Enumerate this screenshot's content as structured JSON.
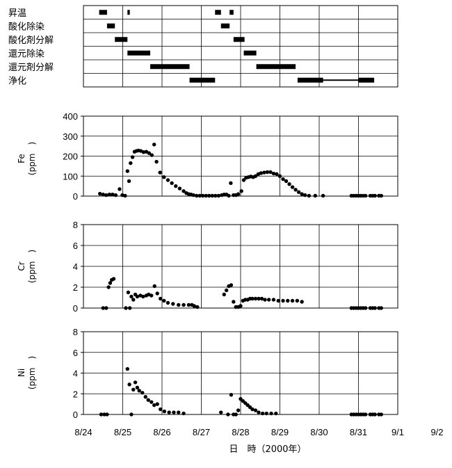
{
  "chart_data": [
    {
      "type": "gantt",
      "rows": [
        "昇温",
        "酸化除染",
        "酸化剤分解",
        "還元除染",
        "還元剤分解",
        "浄化"
      ],
      "bars": [
        {
          "row": 0,
          "start": 0.4,
          "end": 0.6
        },
        {
          "row": 0,
          "start": 1.12,
          "end": 1.18
        },
        {
          "row": 0,
          "start": 3.35,
          "end": 3.5
        },
        {
          "row": 0,
          "start": 3.72,
          "end": 3.82
        },
        {
          "row": 1,
          "start": 0.6,
          "end": 0.8
        },
        {
          "row": 1,
          "start": 3.5,
          "end": 3.72
        },
        {
          "row": 2,
          "start": 0.8,
          "end": 1.12
        },
        {
          "row": 2,
          "start": 3.82,
          "end": 4.1
        },
        {
          "row": 3,
          "start": 1.12,
          "end": 1.7
        },
        {
          "row": 3,
          "start": 4.08,
          "end": 4.4
        },
        {
          "row": 4,
          "start": 1.7,
          "end": 2.7
        },
        {
          "row": 4,
          "start": 4.4,
          "end": 5.4
        },
        {
          "row": 5,
          "start": 2.7,
          "end": 3.35
        },
        {
          "row": 5,
          "start": 5.45,
          "end": 6.1
        },
        {
          "row": 5,
          "start": 7.0,
          "end": 7.4
        }
      ],
      "lines": [
        {
          "row": 5,
          "start": 6.1,
          "end": 7.0
        }
      ]
    },
    {
      "type": "scatter",
      "ylabel": "Fe (ppm)",
      "ylim": [
        0,
        400
      ],
      "yticks": [
        0,
        100,
        200,
        300,
        400
      ],
      "points": [
        [
          0.42,
          12
        ],
        [
          0.5,
          8
        ],
        [
          0.58,
          5
        ],
        [
          0.66,
          8
        ],
        [
          0.74,
          8
        ],
        [
          0.82,
          5
        ],
        [
          0.92,
          35
        ],
        [
          0.99,
          5
        ],
        [
          1.06,
          2
        ],
        [
          1.12,
          125
        ],
        [
          1.16,
          75
        ],
        [
          1.2,
          165
        ],
        [
          1.25,
          195
        ],
        [
          1.3,
          222
        ],
        [
          1.35,
          226
        ],
        [
          1.4,
          228
        ],
        [
          1.46,
          226
        ],
        [
          1.53,
          220
        ],
        [
          1.6,
          222
        ],
        [
          1.67,
          215
        ],
        [
          1.74,
          205
        ],
        [
          1.8,
          258
        ],
        [
          1.86,
          172
        ],
        [
          1.95,
          118
        ],
        [
          2.05,
          95
        ],
        [
          2.15,
          80
        ],
        [
          2.25,
          65
        ],
        [
          2.35,
          50
        ],
        [
          2.45,
          38
        ],
        [
          2.55,
          25
        ],
        [
          2.62,
          15
        ],
        [
          2.68,
          10
        ],
        [
          2.74,
          8
        ],
        [
          2.8,
          5
        ],
        [
          2.88,
          2
        ],
        [
          2.96,
          2
        ],
        [
          3.04,
          2
        ],
        [
          3.12,
          2
        ],
        [
          3.2,
          2
        ],
        [
          3.28,
          2
        ],
        [
          3.36,
          2
        ],
        [
          3.44,
          2
        ],
        [
          3.52,
          5
        ],
        [
          3.58,
          8
        ],
        [
          3.64,
          8
        ],
        [
          3.7,
          2
        ],
        [
          3.75,
          65
        ],
        [
          3.82,
          5
        ],
        [
          3.88,
          5
        ],
        [
          3.94,
          10
        ],
        [
          4.02,
          25
        ],
        [
          4.08,
          80
        ],
        [
          4.14,
          92
        ],
        [
          4.2,
          95
        ],
        [
          4.26,
          98
        ],
        [
          4.32,
          95
        ],
        [
          4.38,
          100
        ],
        [
          4.45,
          110
        ],
        [
          4.52,
          115
        ],
        [
          4.6,
          118
        ],
        [
          4.68,
          120
        ],
        [
          4.76,
          120
        ],
        [
          4.84,
          113
        ],
        [
          4.92,
          110
        ],
        [
          5.0,
          100
        ],
        [
          5.08,
          85
        ],
        [
          5.16,
          75
        ],
        [
          5.24,
          60
        ],
        [
          5.32,
          45
        ],
        [
          5.4,
          32
        ],
        [
          5.48,
          20
        ],
        [
          5.56,
          10
        ],
        [
          5.64,
          5
        ],
        [
          5.74,
          2
        ],
        [
          5.9,
          2
        ],
        [
          6.1,
          2
        ],
        [
          6.82,
          2
        ],
        [
          6.88,
          2
        ],
        [
          6.94,
          2
        ],
        [
          7.0,
          2
        ],
        [
          7.06,
          2
        ],
        [
          7.12,
          2
        ],
        [
          7.18,
          2
        ],
        [
          7.3,
          2
        ],
        [
          7.36,
          2
        ],
        [
          7.42,
          2
        ],
        [
          7.52,
          2
        ],
        [
          7.58,
          2
        ]
      ]
    },
    {
      "type": "scatter",
      "ylabel": "Cr (ppm)",
      "ylim": [
        0,
        8
      ],
      "yticks": [
        0,
        2,
        4,
        6,
        8
      ],
      "points": [
        [
          0.5,
          0
        ],
        [
          0.58,
          0
        ],
        [
          0.64,
          2.0
        ],
        [
          0.68,
          2.4
        ],
        [
          0.72,
          2.7
        ],
        [
          0.77,
          2.8
        ],
        [
          1.08,
          0
        ],
        [
          1.14,
          1.5
        ],
        [
          1.18,
          0
        ],
        [
          1.22,
          1.1
        ],
        [
          1.27,
          0.8
        ],
        [
          1.32,
          1.3
        ],
        [
          1.37,
          1.1
        ],
        [
          1.45,
          1.2
        ],
        [
          1.52,
          1.1
        ],
        [
          1.6,
          1.2
        ],
        [
          1.66,
          1.3
        ],
        [
          1.73,
          1.2
        ],
        [
          1.81,
          2.1
        ],
        [
          1.88,
          1.4
        ],
        [
          1.96,
          0.9
        ],
        [
          2.05,
          0.7
        ],
        [
          2.15,
          0.5
        ],
        [
          2.28,
          0.4
        ],
        [
          2.42,
          0.3
        ],
        [
          2.55,
          0.3
        ],
        [
          2.68,
          0.3
        ],
        [
          2.76,
          0.3
        ],
        [
          2.82,
          0.2
        ],
        [
          2.9,
          0.1
        ],
        [
          3.58,
          1.3
        ],
        [
          3.64,
          1.7
        ],
        [
          3.7,
          2.1
        ],
        [
          3.76,
          2.2
        ],
        [
          3.82,
          0.6
        ],
        [
          3.88,
          0.1
        ],
        [
          3.94,
          0.1
        ],
        [
          4.0,
          0.2
        ],
        [
          4.06,
          0.7
        ],
        [
          4.12,
          0.8
        ],
        [
          4.18,
          0.8
        ],
        [
          4.24,
          0.9
        ],
        [
          4.3,
          0.9
        ],
        [
          4.38,
          0.9
        ],
        [
          4.46,
          0.9
        ],
        [
          4.54,
          0.9
        ],
        [
          4.62,
          0.8
        ],
        [
          4.72,
          0.8
        ],
        [
          4.84,
          0.8
        ],
        [
          4.96,
          0.7
        ],
        [
          5.08,
          0.7
        ],
        [
          5.2,
          0.7
        ],
        [
          5.32,
          0.7
        ],
        [
          5.44,
          0.7
        ],
        [
          5.56,
          0.6
        ],
        [
          6.82,
          0
        ],
        [
          6.88,
          0
        ],
        [
          6.94,
          0
        ],
        [
          7.0,
          0
        ],
        [
          7.06,
          0
        ],
        [
          7.12,
          0
        ],
        [
          7.18,
          0
        ],
        [
          7.3,
          0
        ],
        [
          7.36,
          0
        ],
        [
          7.42,
          0
        ],
        [
          7.52,
          0
        ],
        [
          7.58,
          0
        ]
      ]
    },
    {
      "type": "scatter",
      "ylabel": "Ni (ppm)",
      "ylim": [
        0,
        8
      ],
      "yticks": [
        0,
        2,
        4,
        6,
        8
      ],
      "xticks": [
        "8/24",
        "8/25",
        "8/26",
        "8/27",
        "8/28",
        "8/29",
        "8/30",
        "8/31",
        "9/1",
        "9/2"
      ],
      "xlabel": "日　時（2000年）",
      "points": [
        [
          0.45,
          0
        ],
        [
          0.53,
          0
        ],
        [
          0.6,
          0
        ],
        [
          1.12,
          4.4
        ],
        [
          1.17,
          2.9
        ],
        [
          1.22,
          0
        ],
        [
          1.27,
          2.4
        ],
        [
          1.32,
          3.1
        ],
        [
          1.37,
          2.6
        ],
        [
          1.42,
          2.3
        ],
        [
          1.5,
          2.1
        ],
        [
          1.58,
          1.7
        ],
        [
          1.65,
          1.4
        ],
        [
          1.73,
          1.2
        ],
        [
          1.8,
          0.9
        ],
        [
          1.88,
          1.0
        ],
        [
          1.96,
          0.5
        ],
        [
          2.06,
          0.3
        ],
        [
          2.18,
          0.2
        ],
        [
          2.3,
          0.2
        ],
        [
          2.42,
          0.2
        ],
        [
          2.55,
          0.1
        ],
        [
          3.5,
          0.2
        ],
        [
          3.68,
          0
        ],
        [
          3.76,
          1.9
        ],
        [
          3.82,
          0
        ],
        [
          3.88,
          0
        ],
        [
          3.94,
          0.4
        ],
        [
          4.0,
          1.5
        ],
        [
          4.06,
          1.3
        ],
        [
          4.12,
          1.1
        ],
        [
          4.18,
          0.9
        ],
        [
          4.24,
          0.7
        ],
        [
          4.3,
          0.5
        ],
        [
          4.38,
          0.4
        ],
        [
          4.46,
          0.2
        ],
        [
          4.56,
          0.1
        ],
        [
          4.66,
          0.1
        ],
        [
          4.78,
          0.1
        ],
        [
          4.9,
          0.1
        ],
        [
          6.82,
          0
        ],
        [
          6.88,
          0
        ],
        [
          6.94,
          0
        ],
        [
          7.0,
          0
        ],
        [
          7.06,
          0
        ],
        [
          7.12,
          0
        ],
        [
          7.18,
          0
        ],
        [
          7.3,
          0
        ],
        [
          7.36,
          0
        ],
        [
          7.42,
          0
        ],
        [
          7.52,
          0
        ],
        [
          7.58,
          0
        ]
      ]
    }
  ],
  "labels": {
    "fe_name": "Fe",
    "cr_name": "Cr",
    "ni_name": "Ni",
    "ppm": "(ppm　)"
  }
}
